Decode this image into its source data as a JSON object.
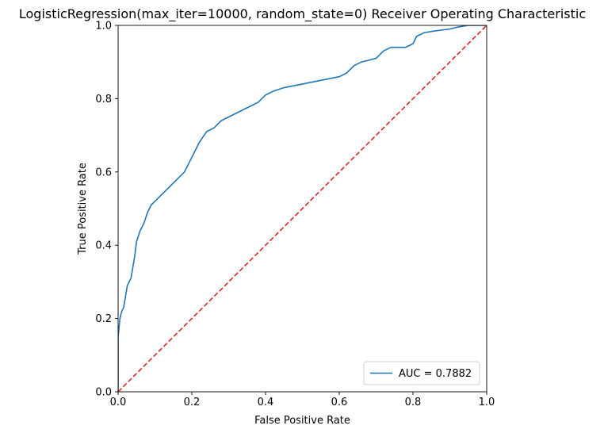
{
  "chart_data": {
    "type": "line",
    "title": "LogisticRegression(max_iter=10000, random_state=0) Receiver Operating Characteristic",
    "xlabel": "False Positive Rate",
    "ylabel": "True Positive Rate",
    "xlim": [
      0,
      1
    ],
    "ylim": [
      0,
      1
    ],
    "grid": false,
    "legend_position": "lower-right",
    "x_ticks": [
      "0.0",
      "0.2",
      "0.4",
      "0.6",
      "0.8",
      "1.0"
    ],
    "y_ticks": [
      "0.0",
      "0.2",
      "0.4",
      "0.6",
      "0.8",
      "1.0"
    ],
    "series": [
      {
        "name": "AUC = 0.7882",
        "color": "#1f77b4",
        "style": "solid",
        "x": [
          0.0,
          0.0,
          0.005,
          0.01,
          0.015,
          0.02,
          0.025,
          0.03,
          0.035,
          0.04,
          0.045,
          0.05,
          0.06,
          0.07,
          0.08,
          0.09,
          0.1,
          0.12,
          0.14,
          0.16,
          0.18,
          0.2,
          0.22,
          0.24,
          0.26,
          0.28,
          0.3,
          0.32,
          0.34,
          0.36,
          0.38,
          0.4,
          0.42,
          0.45,
          0.5,
          0.55,
          0.6,
          0.62,
          0.64,
          0.66,
          0.7,
          0.72,
          0.74,
          0.78,
          0.8,
          0.81,
          0.83,
          0.86,
          0.9,
          0.92,
          0.95,
          0.97,
          1.0
        ],
        "y": [
          0.0,
          0.15,
          0.2,
          0.22,
          0.23,
          0.26,
          0.29,
          0.3,
          0.31,
          0.34,
          0.37,
          0.41,
          0.44,
          0.46,
          0.49,
          0.51,
          0.52,
          0.54,
          0.56,
          0.58,
          0.6,
          0.64,
          0.68,
          0.71,
          0.72,
          0.74,
          0.75,
          0.76,
          0.77,
          0.78,
          0.79,
          0.81,
          0.82,
          0.83,
          0.84,
          0.85,
          0.86,
          0.87,
          0.89,
          0.9,
          0.91,
          0.93,
          0.94,
          0.94,
          0.95,
          0.97,
          0.98,
          0.985,
          0.99,
          0.995,
          1.0,
          1.0,
          1.0
        ]
      },
      {
        "color": "#d62728",
        "style": "dashed",
        "x": [
          0,
          1
        ],
        "y": [
          0,
          1
        ]
      }
    ]
  }
}
